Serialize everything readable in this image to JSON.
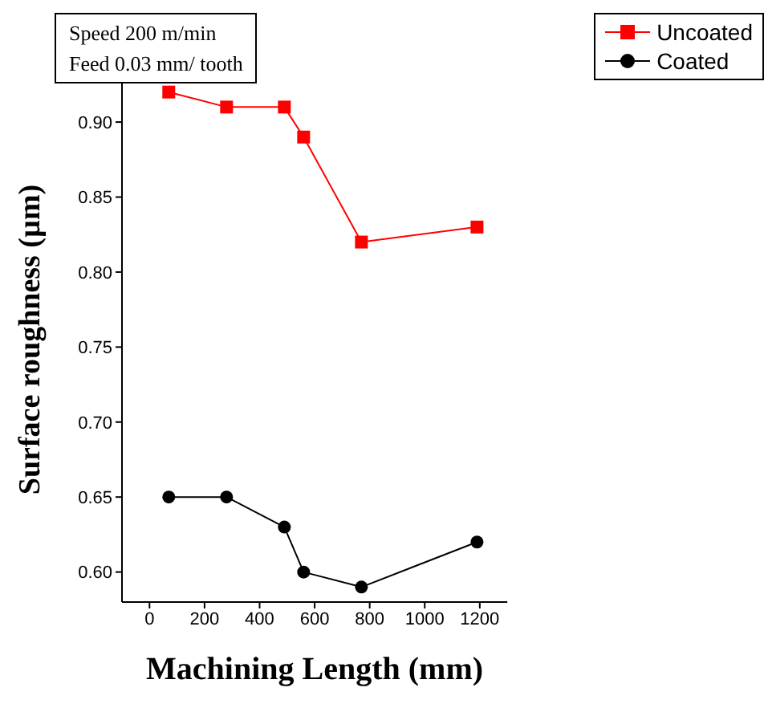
{
  "chart_data": {
    "type": "line",
    "xlabel": "Machining Length (mm)",
    "ylabel": "Surface roughness (µm)",
    "x": [
      70,
      280,
      490,
      560,
      770,
      1190
    ],
    "series": [
      {
        "name": "Uncoated",
        "color": "#ff0000",
        "marker": "square",
        "values": [
          0.92,
          0.91,
          0.91,
          0.89,
          0.82,
          0.83
        ]
      },
      {
        "name": "Coated",
        "color": "#000000",
        "marker": "circle",
        "values": [
          0.65,
          0.65,
          0.63,
          0.6,
          0.59,
          0.62
        ]
      }
    ],
    "xlim": [
      -100,
      1300
    ],
    "xticks": [
      0,
      200,
      400,
      600,
      800,
      1000,
      1200
    ],
    "ylim": [
      0.58,
      0.93
    ],
    "yticks": [
      {
        "value": 0.6,
        "label": "0.60"
      },
      {
        "value": 0.65,
        "label": "0.65"
      },
      {
        "value": 0.7,
        "label": "0.70"
      },
      {
        "value": 0.75,
        "label": "0.75"
      },
      {
        "value": 0.8,
        "label": "0.80"
      },
      {
        "value": 0.85,
        "label": "0.85"
      },
      {
        "value": 0.9,
        "label": "0.90"
      }
    ],
    "annotations": [
      "Speed 200 m/min",
      "Feed  0.03 mm/ tooth"
    ],
    "legend": "top right",
    "grid": false
  }
}
